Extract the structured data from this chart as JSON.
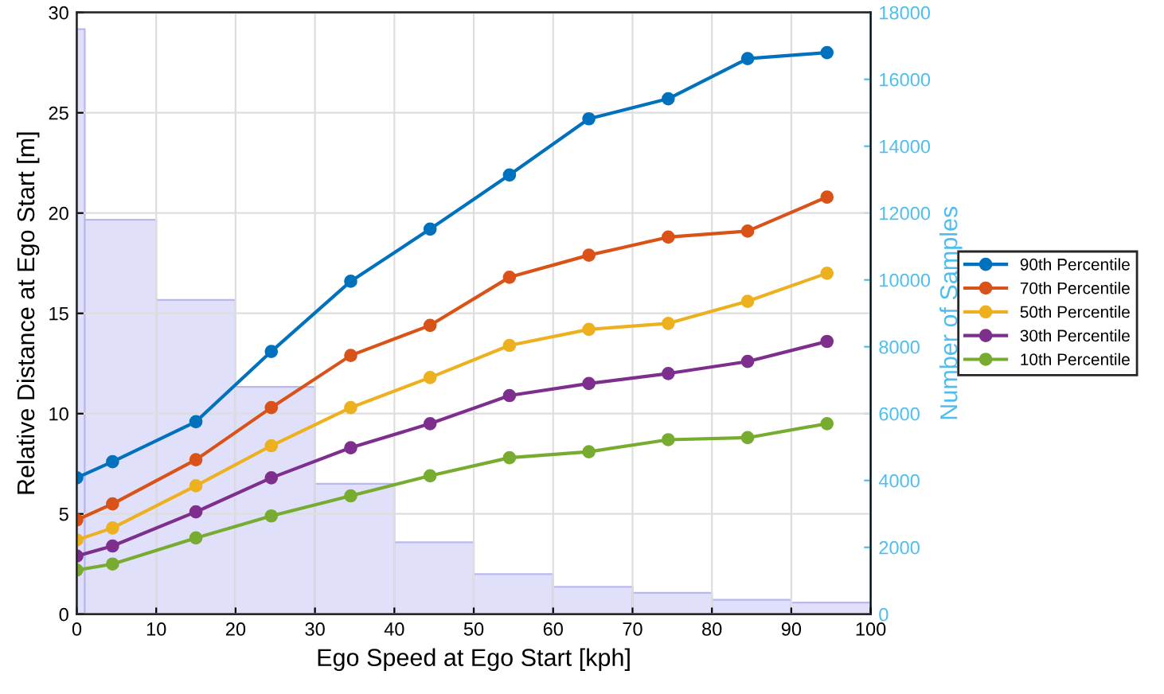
{
  "chart_data": {
    "type": "line",
    "xlabel": "Ego Speed at Ego Start [kph]",
    "ylabel": "Relative Distance at Ego Start [m]",
    "y2label": "Number of Samples",
    "x": [
      0,
      4.5,
      15,
      24.5,
      34.5,
      44.5,
      54.5,
      64.5,
      74.5,
      84.5,
      94.5
    ],
    "series": [
      {
        "type": "histogram",
        "axis": "y2",
        "color": "#e0e0fa",
        "bins": [
          0,
          1,
          10,
          20,
          30,
          40,
          50,
          60,
          70,
          80,
          90,
          100
        ],
        "values": [
          17500,
          11800,
          9400,
          6800,
          3900,
          2150,
          1200,
          820,
          640,
          430,
          350
        ]
      },
      {
        "name": "90th Percentile",
        "color": "#0072bd",
        "values": [
          6.8,
          7.6,
          9.6,
          13.1,
          16.6,
          19.2,
          21.9,
          24.7,
          25.7,
          27.7,
          28.0
        ]
      },
      {
        "name": "70th Percentile",
        "color": "#d95319",
        "values": [
          4.7,
          5.5,
          7.7,
          10.3,
          12.9,
          14.4,
          16.8,
          17.9,
          18.8,
          19.1,
          20.8
        ]
      },
      {
        "name": "50th Percentile",
        "color": "#edb120",
        "values": [
          3.7,
          4.3,
          6.4,
          8.4,
          10.3,
          11.8,
          13.4,
          14.2,
          14.5,
          15.6,
          17.0
        ]
      },
      {
        "name": "30th Percentile",
        "color": "#7e2f8e",
        "values": [
          2.9,
          3.4,
          5.1,
          6.8,
          8.3,
          9.5,
          10.9,
          11.5,
          12.0,
          12.6,
          13.6
        ]
      },
      {
        "name": "10th Percentile",
        "color": "#77ac30",
        "values": [
          2.2,
          2.5,
          3.8,
          4.9,
          5.9,
          6.9,
          7.8,
          8.1,
          8.7,
          8.8,
          9.5
        ]
      }
    ],
    "xlim": [
      0,
      100
    ],
    "xticks": [
      0,
      10,
      20,
      30,
      40,
      50,
      60,
      70,
      80,
      90,
      100
    ],
    "ylim": [
      0,
      30
    ],
    "yticks": [
      0,
      5,
      10,
      15,
      20,
      25,
      30
    ],
    "y2lim": [
      0,
      18000
    ],
    "y2ticks": [
      0,
      2000,
      4000,
      6000,
      8000,
      10000,
      12000,
      14000,
      16000,
      18000
    ],
    "grid": true,
    "legend": "right",
    "marker": "circle",
    "line_style": "solid"
  }
}
